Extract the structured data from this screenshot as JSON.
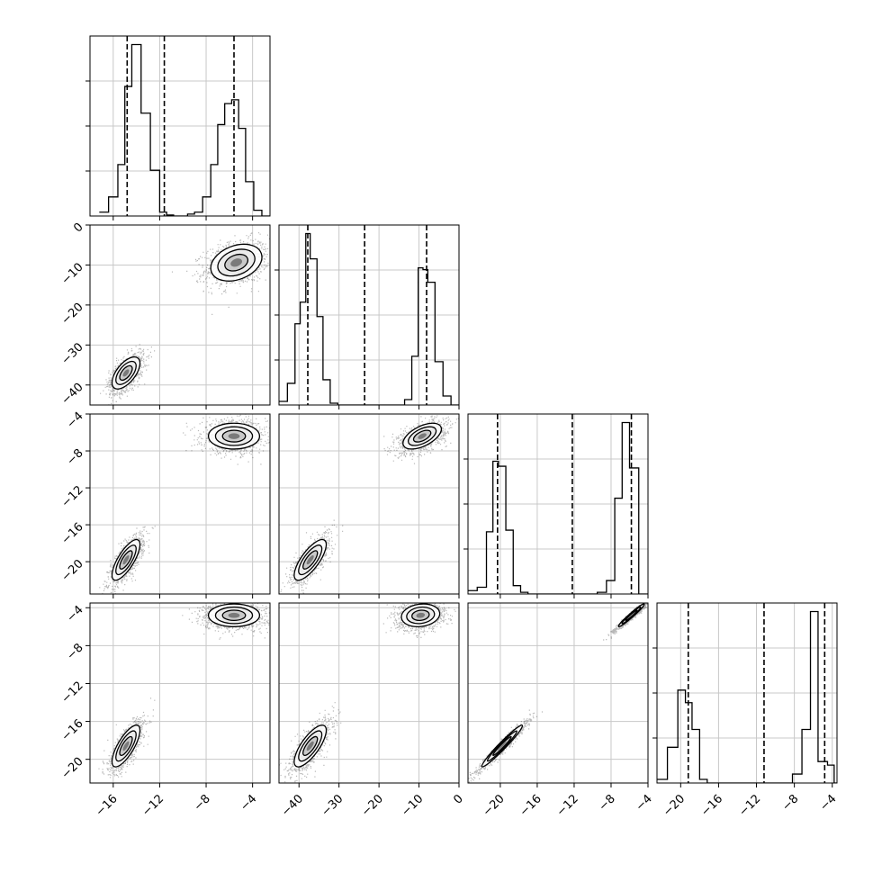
{
  "chart_data": {
    "type": "corner",
    "title": "",
    "grid": true,
    "parameters": [
      {
        "range": [
          -18,
          -2.5
        ],
        "ticks": [
          -16,
          -12,
          -8,
          -4
        ],
        "tick_labels": [
          "−16",
          "−12",
          "−8",
          "−4"
        ],
        "quantiles": [
          -14.8,
          -11.6,
          -5.6
        ],
        "histogram": {
          "bin_edges": [
            -17.2,
            -16.4,
            -15.6,
            -15.0,
            -14.4,
            -13.6,
            -12.8,
            -12.0,
            -11.4,
            -10.8,
            -10.2,
            -9.6,
            -9.0,
            -8.3,
            -7.6,
            -7.0,
            -6.4,
            -5.8,
            -5.2,
            -4.6,
            -3.9,
            -3.2,
            -2.5
          ],
          "counts": [
            0.02,
            0.1,
            0.27,
            0.68,
            0.9,
            0.54,
            0.24,
            0.02,
            0.005,
            0.0,
            0.0,
            0.01,
            0.02,
            0.1,
            0.27,
            0.48,
            0.59,
            0.61,
            0.46,
            0.18,
            0.03,
            0.0
          ]
        }
      },
      {
        "range": [
          -45,
          0
        ],
        "ticks": [
          -40,
          -30,
          -20,
          -10,
          0
        ],
        "tick_labels": [
          "−40",
          "−30",
          "−20",
          "−10",
          "0"
        ],
        "quantiles": [
          -37.8,
          -23.6,
          -8.1
        ],
        "histogram": {
          "bin_edges": [
            -45,
            -42.9,
            -41.0,
            -39.7,
            -38.3,
            -37.2,
            -35.5,
            -34.0,
            -32.2,
            -30.3,
            -28.0,
            -25.0,
            -22.0,
            -19.0,
            -16.0,
            -13.6,
            -11.8,
            -10.2,
            -9.0,
            -7.8,
            -6.0,
            -4.0,
            -2.0,
            0
          ],
          "counts": [
            0.02,
            0.12,
            0.45,
            0.57,
            0.95,
            0.81,
            0.49,
            0.14,
            0.01,
            0.0,
            0.0,
            0.0,
            0.0,
            0.0,
            0.0,
            0.03,
            0.27,
            0.76,
            0.75,
            0.68,
            0.24,
            0.05,
            0.0
          ]
        }
      },
      {
        "range": [
          -23.5,
          -4
        ],
        "ticks": [
          -20,
          -16,
          -12,
          -8,
          -4
        ],
        "tick_labels": [
          "−20",
          "−16",
          "−12",
          "−8",
          "−4"
        ],
        "quantiles": [
          -20.3,
          -12.2,
          -5.8
        ],
        "histogram": {
          "bin_edges": [
            -23.5,
            -22.5,
            -21.5,
            -20.8,
            -20.2,
            -19.4,
            -18.6,
            -17.8,
            -17.0,
            -16.2,
            -15.0,
            -13.0,
            -11.0,
            -9.5,
            -8.5,
            -7.6,
            -6.8,
            -6.0,
            -5.0,
            -4.0
          ],
          "counts": [
            0.02,
            0.04,
            0.37,
            0.79,
            0.76,
            0.38,
            0.05,
            0.01,
            0.0,
            0.0,
            0.0,
            0.0,
            0.0,
            0.01,
            0.08,
            0.57,
            1.02,
            0.75,
            0.0
          ]
        }
      },
      {
        "range": [
          -22.5,
          -3.5
        ],
        "ticks": [
          -20,
          -16,
          -12,
          -8,
          -4
        ],
        "tick_labels": [
          "−20",
          "−16",
          "−12",
          "−8",
          "−4"
        ],
        "quantiles": [
          -19.2,
          -11.2,
          -4.8
        ],
        "histogram": {
          "bin_edges": [
            -22.5,
            -21.4,
            -20.3,
            -19.5,
            -18.8,
            -18.0,
            -17.2,
            -16.4,
            -15.4,
            -12.0,
            -8.2,
            -7.2,
            -6.3,
            -5.5,
            -4.5,
            -3.8,
            -3.5
          ],
          "counts": [
            0.02,
            0.2,
            0.52,
            0.45,
            0.3,
            0.02,
            0.0,
            0.0,
            0.0,
            0.0,
            0.05,
            0.3,
            0.96,
            0.12,
            0.1,
            0.0
          ]
        }
      }
    ],
    "pairs": [
      {
        "row": 1,
        "col": 0,
        "modes": [
          {
            "center": [
              -5.4,
              -9.4
            ],
            "sx": 1.1,
            "sy": 2.3,
            "rho": 0.3,
            "n": 1100
          },
          {
            "center": [
              -14.9,
              -37.0
            ],
            "sx": 0.6,
            "sy": 2.0,
            "rho": 0.6,
            "n": 1000
          }
        ]
      },
      {
        "row": 2,
        "col": 0,
        "modes": [
          {
            "center": [
              -5.6,
              -6.4
            ],
            "sx": 1.1,
            "sy": 0.7,
            "rho": 0.0,
            "n": 1100
          },
          {
            "center": [
              -14.9,
              -19.8
            ],
            "sx": 0.6,
            "sy": 1.1,
            "rho": 0.75,
            "n": 1000
          }
        ]
      },
      {
        "row": 2,
        "col": 1,
        "modes": [
          {
            "center": [
              -9.2,
              -6.4
            ],
            "sx": 2.4,
            "sy": 0.7,
            "rho": 0.55,
            "n": 1100
          },
          {
            "center": [
              -37.2,
              -19.8
            ],
            "sx": 2.0,
            "sy": 1.1,
            "rho": 0.75,
            "n": 1000
          }
        ]
      },
      {
        "row": 3,
        "col": 0,
        "modes": [
          {
            "center": [
              -5.6,
              -4.8
            ],
            "sx": 1.1,
            "sy": 0.6,
            "rho": 0.0,
            "n": 1100
          },
          {
            "center": [
              -14.9,
              -18.6
            ],
            "sx": 0.6,
            "sy": 1.1,
            "rho": 0.75,
            "n": 1000
          }
        ]
      },
      {
        "row": 3,
        "col": 1,
        "modes": [
          {
            "center": [
              -9.6,
              -4.8
            ],
            "sx": 2.4,
            "sy": 0.6,
            "rho": 0.15,
            "n": 1100
          },
          {
            "center": [
              -37.2,
              -18.6
            ],
            "sx": 2.0,
            "sy": 1.1,
            "rho": 0.75,
            "n": 1000
          }
        ]
      },
      {
        "row": 3,
        "col": 2,
        "modes": [
          {
            "center": [
              -5.8,
              -4.8
            ],
            "sx": 0.7,
            "sy": 0.6,
            "rho": 0.97,
            "n": 1100
          },
          {
            "center": [
              -19.8,
              -18.6
            ],
            "sx": 1.1,
            "sy": 1.1,
            "rho": 0.97,
            "n": 1000
          }
        ]
      }
    ]
  }
}
